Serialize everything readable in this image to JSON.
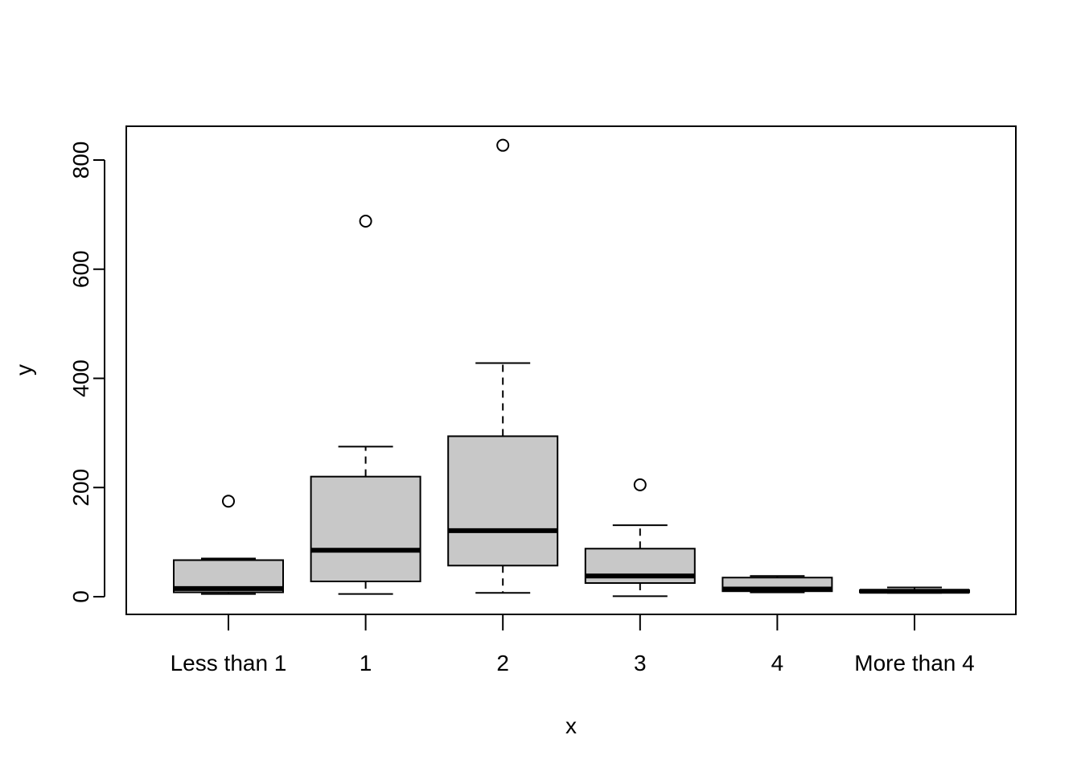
{
  "chart_data": {
    "type": "boxplot",
    "title": "",
    "xlabel": "x",
    "ylabel": "y",
    "categories": [
      "Less than 1",
      "1",
      "2",
      "3",
      "4",
      "More than 4"
    ],
    "boxes": [
      {
        "category": "Less than 1",
        "whisker_low": 5,
        "q1": 8,
        "median": 15,
        "q3": 67,
        "whisker_high": 70,
        "outliers": [
          175
        ]
      },
      {
        "category": "1",
        "whisker_low": 5,
        "q1": 28,
        "median": 85,
        "q3": 220,
        "whisker_high": 275,
        "outliers": [
          688
        ]
      },
      {
        "category": "2",
        "whisker_low": 7,
        "q1": 57,
        "median": 121,
        "q3": 294,
        "whisker_high": 428,
        "outliers": [
          827
        ]
      },
      {
        "category": "3",
        "whisker_low": 1,
        "q1": 25,
        "median": 38,
        "q3": 88,
        "whisker_high": 131,
        "outliers": [
          205
        ]
      },
      {
        "category": "4",
        "whisker_low": 8,
        "q1": 10,
        "median": 14,
        "q3": 35,
        "whisker_high": 38,
        "outliers": []
      },
      {
        "category": "More than 4",
        "whisker_low": 7,
        "q1": 8,
        "median": 10,
        "q3": 12,
        "whisker_high": 17,
        "outliers": []
      }
    ],
    "yticks": [
      0,
      200,
      400,
      600,
      800
    ],
    "ylim": [
      -32,
      860
    ],
    "grid": false,
    "legend": "none",
    "colors": {
      "box_fill": "#c8c8c8",
      "stroke": "#000000",
      "background": "#ffffff"
    }
  }
}
